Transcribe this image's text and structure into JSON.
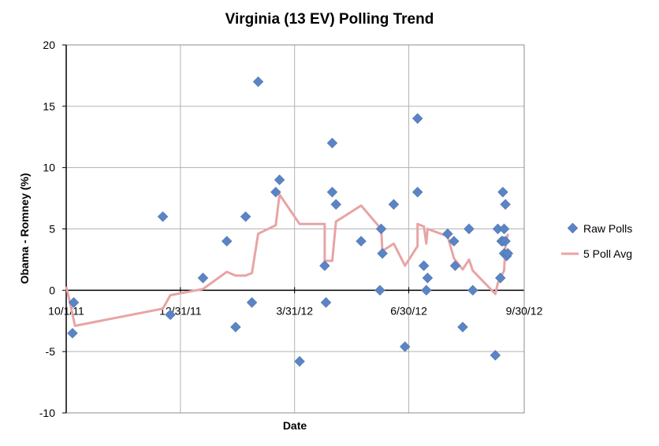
{
  "chart_data": {
    "type": "scatter",
    "title": "Virginia (13 EV) Polling Trend",
    "xlabel": "Date",
    "ylabel": "Obama - Romney (%)",
    "ylim": [
      -10,
      20
    ],
    "yticks": [
      -10,
      -5,
      0,
      5,
      10,
      15,
      20
    ],
    "xlim": [
      "2011-10-01",
      "2012-09-30"
    ],
    "xticks": [
      "10/1/11",
      "12/31/11",
      "3/31/12",
      "6/30/12",
      "9/30/12"
    ],
    "grid": true,
    "legend": "right",
    "series": [
      {
        "name": "Raw Polls",
        "kind": "scatter",
        "color": "#5b84c4",
        "points": [
          {
            "x": "2011-10-07",
            "y": -1
          },
          {
            "x": "2011-10-06",
            "y": -3.5
          },
          {
            "x": "2011-12-17",
            "y": 6
          },
          {
            "x": "2011-12-23",
            "y": -2
          },
          {
            "x": "2012-01-18",
            "y": 1
          },
          {
            "x": "2012-02-06",
            "y": 4
          },
          {
            "x": "2012-02-13",
            "y": -3
          },
          {
            "x": "2012-02-21",
            "y": 6
          },
          {
            "x": "2012-02-26",
            "y": -1
          },
          {
            "x": "2012-03-02",
            "y": 17
          },
          {
            "x": "2012-03-16",
            "y": 8
          },
          {
            "x": "2012-03-19",
            "y": 9
          },
          {
            "x": "2012-04-04",
            "y": -5.8
          },
          {
            "x": "2012-04-24",
            "y": 2
          },
          {
            "x": "2012-04-25",
            "y": -1
          },
          {
            "x": "2012-04-30",
            "y": 12
          },
          {
            "x": "2012-04-30",
            "y": 8
          },
          {
            "x": "2012-05-03",
            "y": 7
          },
          {
            "x": "2012-05-23",
            "y": 4
          },
          {
            "x": "2012-06-07",
            "y": 0
          },
          {
            "x": "2012-06-08",
            "y": 5
          },
          {
            "x": "2012-06-09",
            "y": 3
          },
          {
            "x": "2012-06-18",
            "y": 7
          },
          {
            "x": "2012-06-27",
            "y": -4.6
          },
          {
            "x": "2012-07-07",
            "y": 14
          },
          {
            "x": "2012-07-07",
            "y": 8
          },
          {
            "x": "2012-07-12",
            "y": 2
          },
          {
            "x": "2012-07-14",
            "y": 0
          },
          {
            "x": "2012-07-15",
            "y": 1
          },
          {
            "x": "2012-07-31",
            "y": 4.6
          },
          {
            "x": "2012-08-05",
            "y": 4
          },
          {
            "x": "2012-08-06",
            "y": 2
          },
          {
            "x": "2012-08-12",
            "y": -3
          },
          {
            "x": "2012-08-17",
            "y": 5
          },
          {
            "x": "2012-08-20",
            "y": 0
          },
          {
            "x": "2012-09-07",
            "y": -5.3
          },
          {
            "x": "2012-09-09",
            "y": 5
          },
          {
            "x": "2012-09-11",
            "y": 1
          },
          {
            "x": "2012-09-12",
            "y": 4
          },
          {
            "x": "2012-09-13",
            "y": 4
          },
          {
            "x": "2012-09-13",
            "y": 8
          },
          {
            "x": "2012-09-14",
            "y": 5
          },
          {
            "x": "2012-09-14",
            "y": 3
          },
          {
            "x": "2012-09-15",
            "y": 7
          },
          {
            "x": "2012-09-15",
            "y": 4
          },
          {
            "x": "2012-09-16",
            "y": 2.8
          },
          {
            "x": "2012-09-17",
            "y": 3
          }
        ]
      },
      {
        "name": "5 Poll Avg",
        "kind": "line",
        "color": "#e8a4a4",
        "points": [
          {
            "x": "2011-10-01",
            "y": 0.3
          },
          {
            "x": "2011-10-04",
            "y": -1
          },
          {
            "x": "2011-10-08",
            "y": -2.9
          },
          {
            "x": "2011-12-17",
            "y": -1.5
          },
          {
            "x": "2011-12-23",
            "y": -0.4
          },
          {
            "x": "2012-01-18",
            "y": 0.1
          },
          {
            "x": "2012-02-06",
            "y": 1.5
          },
          {
            "x": "2012-02-13",
            "y": 1.2
          },
          {
            "x": "2012-02-21",
            "y": 1.2
          },
          {
            "x": "2012-02-26",
            "y": 1.4
          },
          {
            "x": "2012-03-02",
            "y": 4.6
          },
          {
            "x": "2012-03-16",
            "y": 5.3
          },
          {
            "x": "2012-03-19",
            "y": 7.8
          },
          {
            "x": "2012-04-04",
            "y": 5.4
          },
          {
            "x": "2012-04-24",
            "y": 5.4
          },
          {
            "x": "2012-04-24",
            "y": 2.4
          },
          {
            "x": "2012-04-30",
            "y": 2.4
          },
          {
            "x": "2012-05-03",
            "y": 5.6
          },
          {
            "x": "2012-05-23",
            "y": 6.9
          },
          {
            "x": "2012-06-08",
            "y": 5
          },
          {
            "x": "2012-06-09",
            "y": 3.2
          },
          {
            "x": "2012-06-18",
            "y": 3.8
          },
          {
            "x": "2012-06-27",
            "y": 2
          },
          {
            "x": "2012-07-07",
            "y": 3.6
          },
          {
            "x": "2012-07-07",
            "y": 5.4
          },
          {
            "x": "2012-07-12",
            "y": 5.2
          },
          {
            "x": "2012-07-14",
            "y": 3.8
          },
          {
            "x": "2012-07-15",
            "y": 5
          },
          {
            "x": "2012-07-31",
            "y": 4.4
          },
          {
            "x": "2012-08-05",
            "y": 2.6
          },
          {
            "x": "2012-08-12",
            "y": 1.7
          },
          {
            "x": "2012-08-17",
            "y": 2.5
          },
          {
            "x": "2012-08-20",
            "y": 1.6
          },
          {
            "x": "2012-09-07",
            "y": -0.3
          },
          {
            "x": "2012-09-09",
            "y": 0.6
          },
          {
            "x": "2012-09-12",
            "y": 1.2
          },
          {
            "x": "2012-09-14",
            "y": 1.6
          },
          {
            "x": "2012-09-15",
            "y": 3.6
          },
          {
            "x": "2012-09-17",
            "y": 4.6
          }
        ]
      }
    ]
  }
}
